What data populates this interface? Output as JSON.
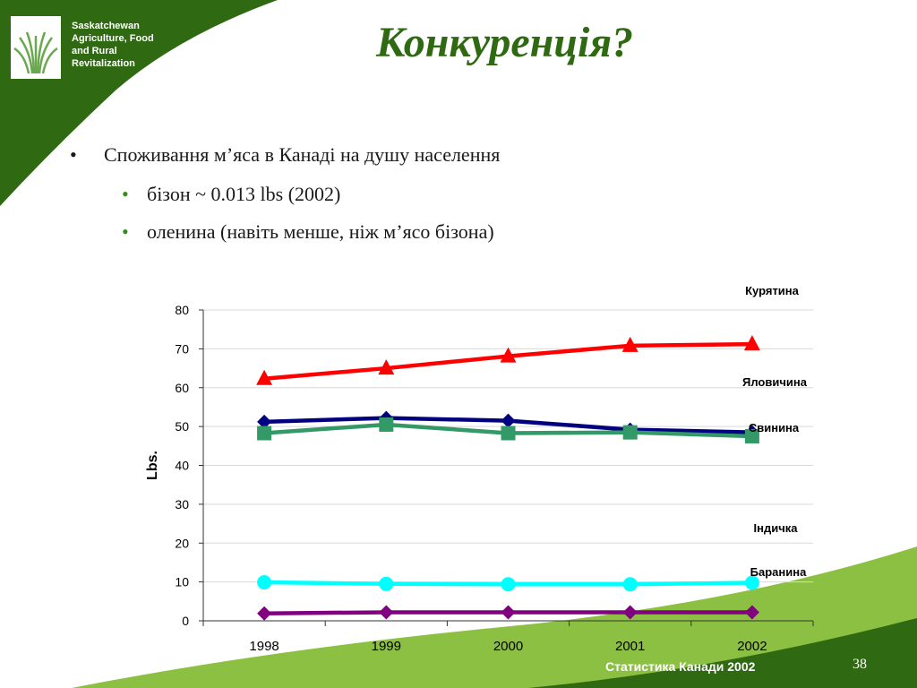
{
  "logo": {
    "lines": [
      "Saskatchewan",
      "Agriculture, Food",
      "and Rural",
      "Revitalization"
    ]
  },
  "title": "Конкуренція?",
  "bullets": {
    "main": "Споживання м’яса в Канаді на душу населення",
    "sub": [
      "бізон ~ 0.013 lbs (2002)",
      "оленина (навіть менше, ніж м’ясо бізона)"
    ]
  },
  "source": "Статистика Канади 2002",
  "page_number": "38",
  "colors": {
    "dark_green": "#2f6a12",
    "light_green": "#8cc043",
    "bullet_green": "#3c8a1e"
  },
  "chart_data": {
    "type": "line",
    "categories": [
      "1998",
      "1999",
      "2000",
      "2001",
      "2002"
    ],
    "ylabel": "Lbs.",
    "xlabel": "",
    "ylim": [
      0,
      80
    ],
    "yticks": [
      0,
      10,
      20,
      30,
      40,
      50,
      60,
      70,
      80
    ],
    "grid": true,
    "legend": "right, labels beside series",
    "series": [
      {
        "name": "Курятина",
        "values": [
          62.3,
          65.0,
          68.1,
          70.8,
          71.2
        ],
        "color": "#ff0000",
        "marker": "triangle"
      },
      {
        "name": "Яловичина",
        "values": [
          51.2,
          52.2,
          51.5,
          49.2,
          48.5
        ],
        "color": "#000080",
        "marker": "diamond"
      },
      {
        "name": "Свинина",
        "values": [
          48.3,
          50.5,
          48.3,
          48.5,
          47.5
        ],
        "color": "#339966",
        "marker": "square"
      },
      {
        "name": "Індичка",
        "values": [
          9.9,
          9.5,
          9.4,
          9.4,
          9.8
        ],
        "color": "#00ffff",
        "marker": "circle"
      },
      {
        "name": "Баранина",
        "values": [
          1.9,
          2.2,
          2.2,
          2.2,
          2.2
        ],
        "color": "#800080",
        "marker": "diamond"
      }
    ]
  }
}
